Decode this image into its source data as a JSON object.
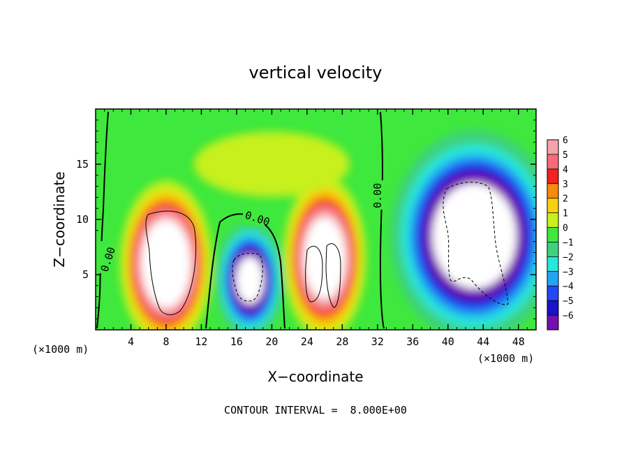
{
  "chart_data": {
    "type": "heatmap",
    "title": "vertical velocity",
    "xlabel": "X−coordinate",
    "ylabel": "Z−coordinate",
    "x_unit": "(×1000 m)",
    "z_unit": "(×1000 m)",
    "xlim": [
      0,
      50
    ],
    "ylim": [
      0,
      20
    ],
    "x_ticks": [
      4,
      8,
      12,
      16,
      20,
      24,
      28,
      32,
      36,
      40,
      44,
      48
    ],
    "x_tick_labels": [
      "4",
      "8",
      "12",
      "16",
      "20",
      "24",
      "28",
      "32",
      "36",
      "40",
      "44",
      "48"
    ],
    "y_ticks": [
      5,
      10,
      15
    ],
    "y_tick_labels": [
      "5",
      "10",
      "15"
    ],
    "colorbar": {
      "min": -6,
      "max": 6,
      "ticks": [
        6,
        5,
        4,
        3,
        2,
        1,
        0,
        -1,
        -2,
        -3,
        -4,
        -5,
        -6
      ],
      "tick_labels": [
        "6",
        "5",
        "4",
        "3",
        "2",
        "1",
        "0",
        "−1",
        "−2",
        "−3",
        "−4",
        "−5",
        "−6"
      ],
      "colors": [
        "#f4a3a8",
        "#f86a78",
        "#f2231f",
        "#f98a0c",
        "#f7d20d",
        "#c7f01c",
        "#3ee83c",
        "#3dd27e",
        "#26e8dc",
        "#23a6f0",
        "#2448f5",
        "#1b11c8",
        "#7410ad"
      ]
    },
    "contour_labels": [
      "0.00",
      "0.00",
      "0.00"
    ],
    "features": [
      {
        "x": 8,
        "z": 6,
        "sign": 1,
        "amp": 18,
        "rx": 3.5,
        "rz": 5.0
      },
      {
        "x": 26,
        "z": 6.5,
        "sign": 1,
        "amp": 16,
        "rx": 3.2,
        "rz": 5.0
      },
      {
        "x": 17.5,
        "z": 4.5,
        "sign": -1,
        "amp": 12,
        "rx": 2.8,
        "rz": 3.8
      },
      {
        "x": 43,
        "z": 8.5,
        "sign": -1,
        "amp": 16,
        "rx": 6.5,
        "rz": 6.5
      },
      {
        "x": 20,
        "z": 15,
        "sign": 1,
        "amp": 2,
        "rx": 12,
        "rz": 4
      }
    ],
    "footer": "CONTOUR INTERVAL =  8.000E+00"
  }
}
